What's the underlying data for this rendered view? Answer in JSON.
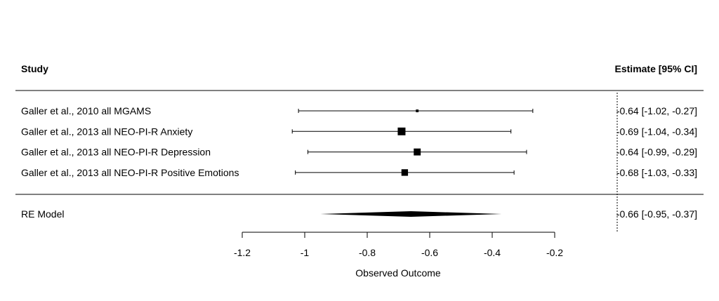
{
  "chart_data": {
    "type": "forest",
    "headers": {
      "study": "Study",
      "estimate": "Estimate [95% CI]"
    },
    "studies": [
      {
        "label": "Galler et al., 2010 all MGAMS",
        "estimate": -0.64,
        "ci_low": -1.02,
        "ci_high": -0.27,
        "ci_text": "-0.64 [-1.02, -0.27]"
      },
      {
        "label": "Galler et al., 2013 all NEO-PI-R Anxiety",
        "estimate": -0.69,
        "ci_low": -1.04,
        "ci_high": -0.34,
        "ci_text": "-0.69 [-1.04, -0.34]"
      },
      {
        "label": "Galler et al., 2013 all NEO-PI-R Depression",
        "estimate": -0.64,
        "ci_low": -0.99,
        "ci_high": -0.29,
        "ci_text": "-0.64 [-0.99, -0.29]"
      },
      {
        "label": "Galler et al., 2013 all NEO-PI-R Positive Emotions",
        "estimate": -0.68,
        "ci_low": -1.03,
        "ci_high": -0.33,
        "ci_text": "-0.68 [-1.03, -0.33]"
      }
    ],
    "weights": [
      0.35,
      1.0,
      0.9,
      0.85
    ],
    "summary": {
      "label": "RE Model",
      "estimate": -0.66,
      "ci_low": -0.95,
      "ci_high": -0.37,
      "ci_text": "-0.66 [-0.95, -0.37]"
    },
    "reference_line": 0,
    "xlim": [
      -1.2,
      -0.2
    ],
    "xticks": [
      -1.2,
      -1,
      -0.8,
      -0.6,
      -0.4,
      -0.2
    ],
    "xtick_labels": [
      "-1.2",
      "-1",
      "-0.8",
      "-0.6",
      "-0.4",
      "-0.2"
    ],
    "xlabel": "Observed Outcome"
  }
}
